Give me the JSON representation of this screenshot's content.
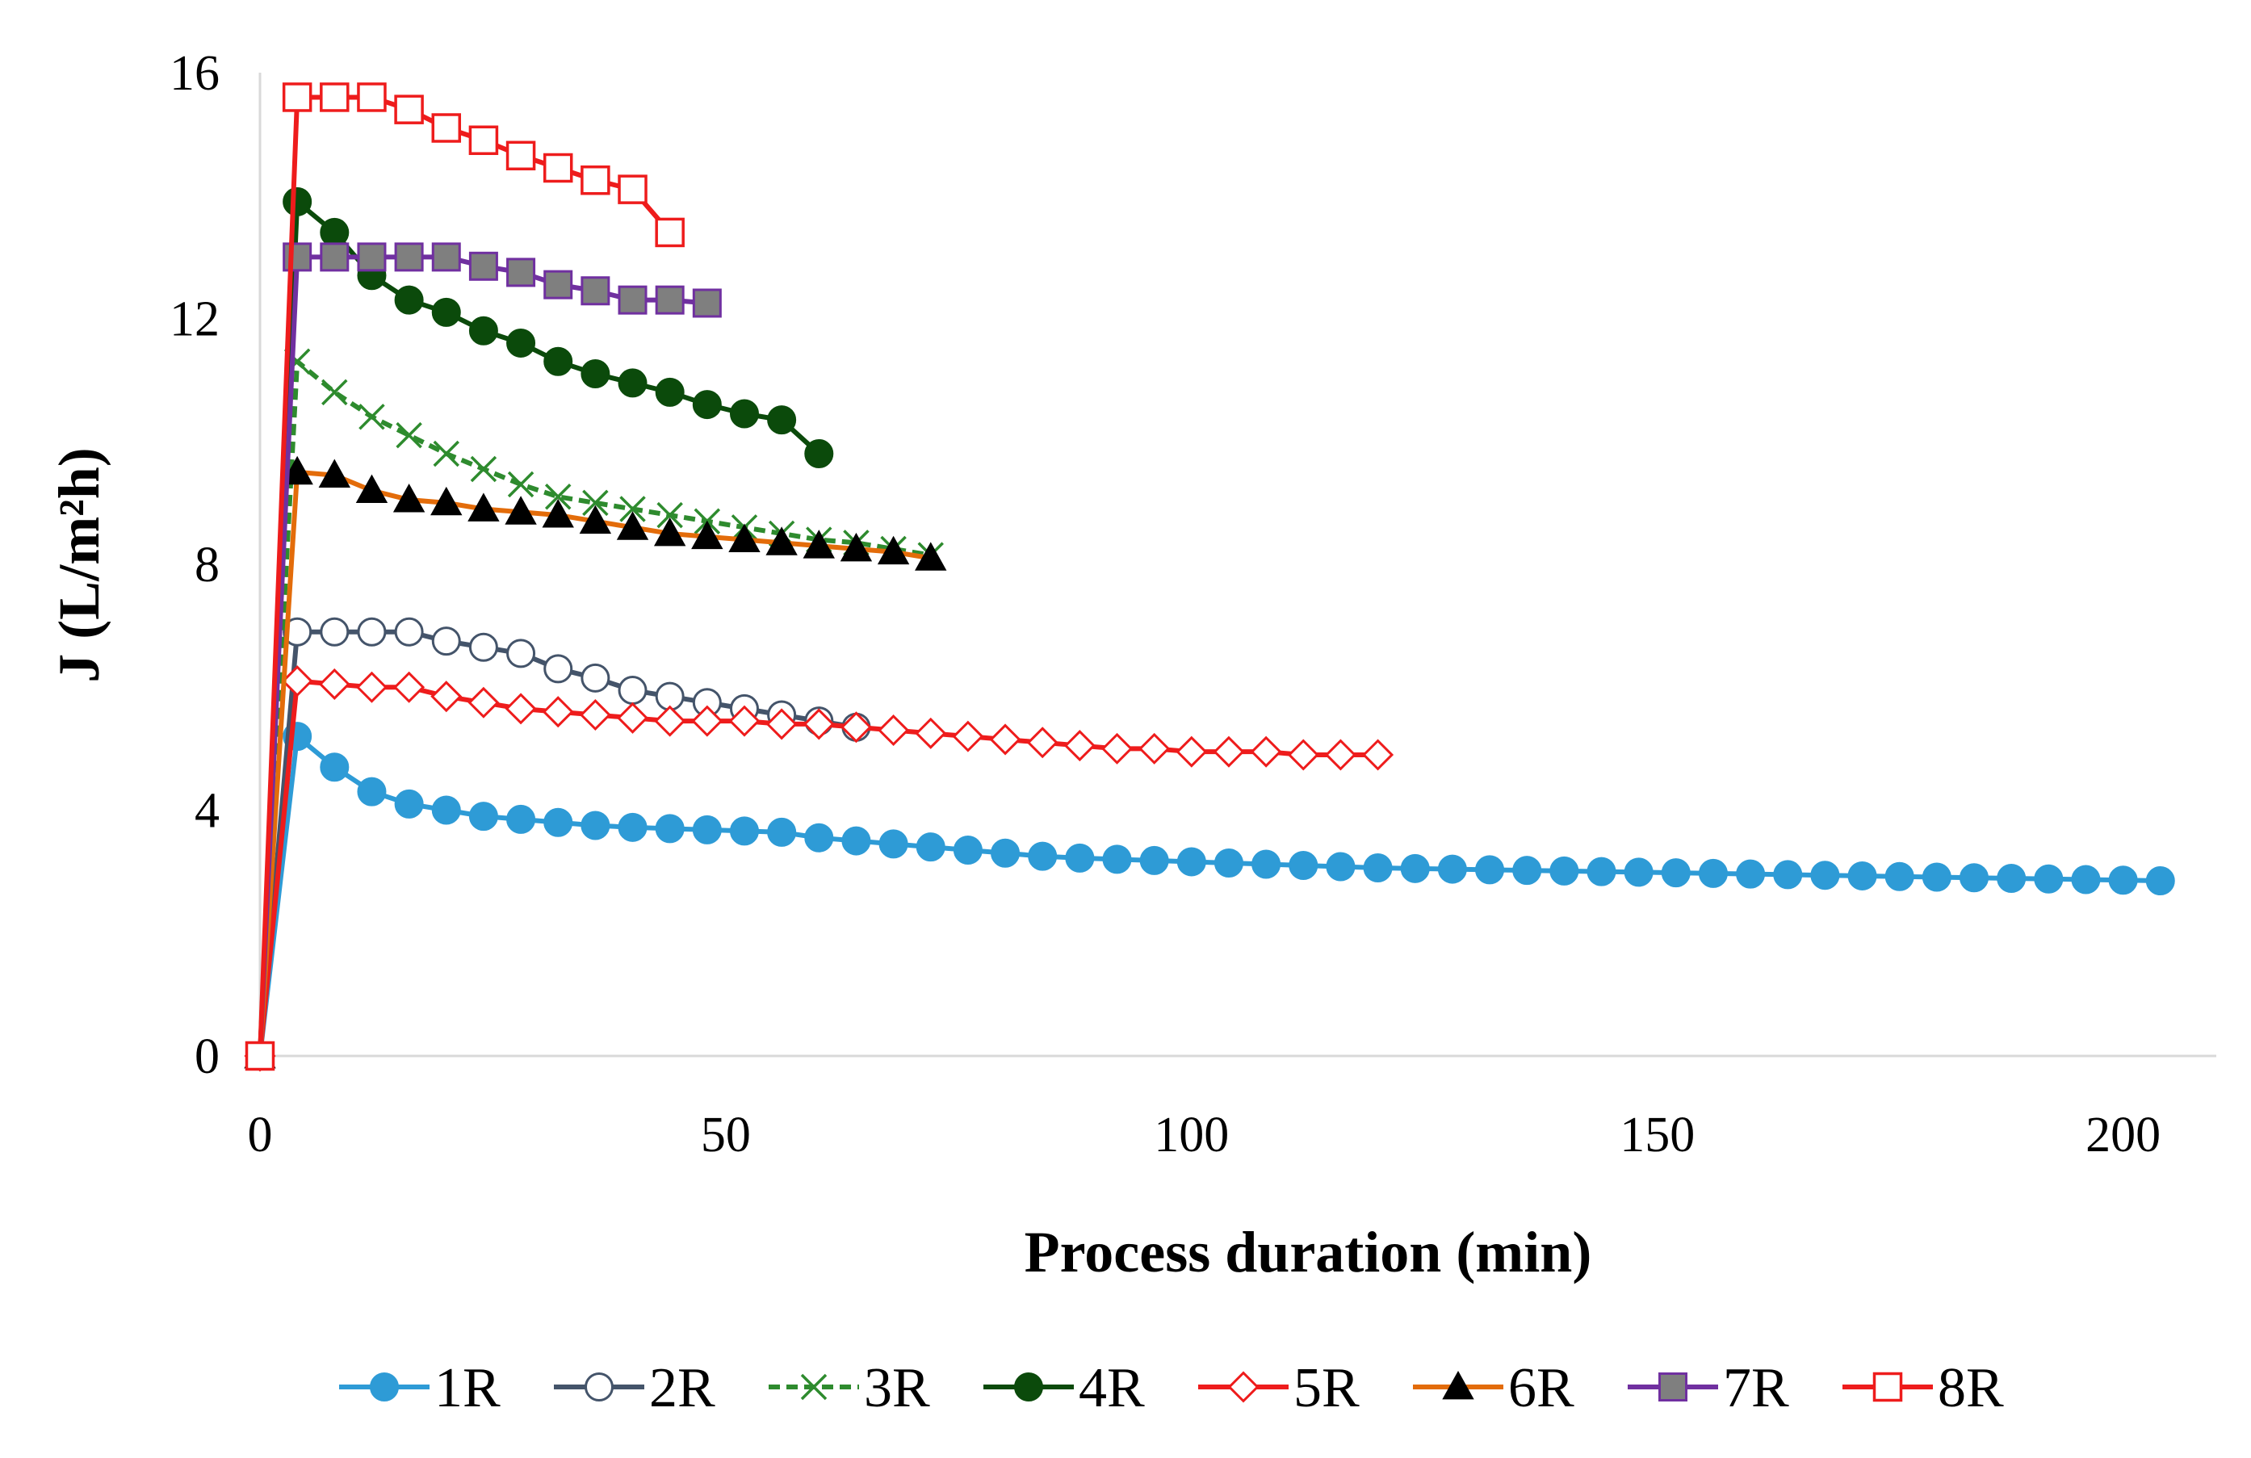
{
  "chart_data": {
    "type": "line",
    "title": "",
    "xlabel": "Process duration (min)",
    "ylabel": "J (L/m²h)",
    "xlim": [
      0,
      210
    ],
    "ylim": [
      0,
      16
    ],
    "x_ticks": [
      0,
      50,
      100,
      150,
      200
    ],
    "y_ticks": [
      0,
      4,
      8,
      12,
      16
    ],
    "grid": false,
    "legend_position": "bottom",
    "series": [
      {
        "name": "1R",
        "color": "#2E9BD6",
        "marker": "circle-filled",
        "x": [
          0,
          4,
          8,
          12,
          16,
          20,
          24,
          28,
          32,
          36,
          40,
          44,
          48,
          52,
          56,
          60,
          64,
          68,
          72,
          76,
          80,
          84,
          88,
          92,
          96,
          100,
          104,
          108,
          112,
          116,
          120,
          124,
          128,
          132,
          136,
          140,
          144,
          148,
          152,
          156,
          160,
          164,
          168,
          172,
          176,
          180,
          184,
          188,
          192,
          196,
          200,
          204
        ],
        "y": [
          0,
          5.2,
          4.7,
          4.3,
          4.1,
          4.0,
          3.9,
          3.85,
          3.8,
          3.75,
          3.72,
          3.7,
          3.68,
          3.66,
          3.64,
          3.55,
          3.5,
          3.45,
          3.4,
          3.35,
          3.3,
          3.25,
          3.22,
          3.2,
          3.18,
          3.16,
          3.14,
          3.12,
          3.1,
          3.08,
          3.06,
          3.05,
          3.04,
          3.03,
          3.02,
          3.01,
          3.0,
          2.99,
          2.98,
          2.97,
          2.96,
          2.95,
          2.94,
          2.93,
          2.92,
          2.91,
          2.9,
          2.89,
          2.88,
          2.87,
          2.86,
          2.85
        ]
      },
      {
        "name": "2R",
        "color": "#44546A",
        "marker": "circle-open",
        "x": [
          0,
          4,
          8,
          12,
          16,
          20,
          24,
          28,
          32,
          36,
          40,
          44,
          48,
          52,
          56,
          60,
          64
        ],
        "y": [
          0,
          6.9,
          6.9,
          6.9,
          6.9,
          6.75,
          6.65,
          6.55,
          6.3,
          6.15,
          5.95,
          5.85,
          5.75,
          5.65,
          5.55,
          5.45,
          5.35
        ]
      },
      {
        "name": "3R",
        "color": "#2E8B2E",
        "marker": "x",
        "dashed": true,
        "x": [
          0,
          4,
          8,
          12,
          16,
          20,
          24,
          28,
          32,
          36,
          40,
          44,
          48,
          52,
          56,
          60,
          64,
          68,
          72
        ],
        "y": [
          0,
          11.3,
          10.8,
          10.4,
          10.1,
          9.8,
          9.55,
          9.3,
          9.1,
          9.0,
          8.9,
          8.8,
          8.7,
          8.6,
          8.5,
          8.4,
          8.35,
          8.25,
          8.15
        ]
      },
      {
        "name": "4R",
        "color": "#0B4A0B",
        "marker": "circle-filled",
        "x": [
          0,
          4,
          8,
          12,
          16,
          20,
          24,
          28,
          32,
          36,
          40,
          44,
          48,
          52,
          56,
          60
        ],
        "y": [
          0,
          13.9,
          13.4,
          12.7,
          12.3,
          12.1,
          11.8,
          11.6,
          11.3,
          11.1,
          10.95,
          10.8,
          10.6,
          10.45,
          10.35,
          9.8
        ]
      },
      {
        "name": "5R",
        "color": "#EE1C1C",
        "marker": "diamond-open",
        "x": [
          0,
          4,
          8,
          12,
          16,
          20,
          24,
          28,
          32,
          36,
          40,
          44,
          48,
          52,
          56,
          60,
          64,
          68,
          72,
          76,
          80,
          84,
          88,
          92,
          96,
          100,
          104,
          108,
          112,
          116,
          120
        ],
        "y": [
          0,
          6.1,
          6.05,
          6.0,
          6.0,
          5.85,
          5.75,
          5.65,
          5.6,
          5.55,
          5.5,
          5.45,
          5.45,
          5.45,
          5.4,
          5.4,
          5.35,
          5.3,
          5.25,
          5.2,
          5.15,
          5.1,
          5.05,
          5.0,
          5.0,
          4.95,
          4.95,
          4.95,
          4.9,
          4.9,
          4.9
        ]
      },
      {
        "name": "6R",
        "color": "#E36C0A",
        "marker": "triangle-filled",
        "x": [
          0,
          4,
          8,
          12,
          16,
          20,
          24,
          28,
          32,
          36,
          40,
          44,
          48,
          52,
          56,
          60,
          64,
          68,
          72
        ],
        "y": [
          0,
          9.5,
          9.45,
          9.2,
          9.05,
          9.0,
          8.9,
          8.85,
          8.8,
          8.7,
          8.6,
          8.5,
          8.45,
          8.4,
          8.35,
          8.3,
          8.25,
          8.2,
          8.1
        ]
      },
      {
        "name": "7R",
        "color": "#7030A0",
        "marker": "square-filled",
        "x": [
          0,
          4,
          8,
          12,
          16,
          20,
          24,
          28,
          32,
          36,
          40,
          44,
          48
        ],
        "y": [
          0,
          13.0,
          13.0,
          13.0,
          13.0,
          13.0,
          12.85,
          12.75,
          12.55,
          12.45,
          12.3,
          12.3,
          12.25
        ]
      },
      {
        "name": "8R",
        "color": "#EE1C1C",
        "marker": "square-open",
        "x": [
          0,
          4,
          8,
          12,
          16,
          20,
          24,
          28,
          32,
          36,
          40,
          44
        ],
        "y": [
          0,
          15.6,
          15.6,
          15.6,
          15.4,
          15.1,
          14.9,
          14.65,
          14.45,
          14.25,
          14.1,
          13.4
        ]
      }
    ]
  }
}
